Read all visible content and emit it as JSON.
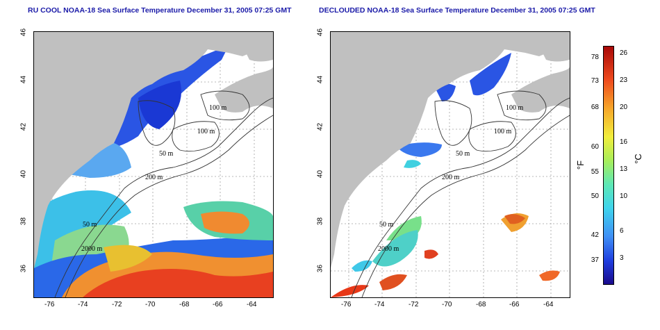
{
  "titles": {
    "left": "RU COOL NOAA-18 Sea Surface Temperature December 31, 2005 07:25 GMT",
    "right": "DECLOUDED NOAA-18 Sea Surface Temperature December 31, 2005 07:25 GMT"
  },
  "axes": {
    "x_ticks": [
      "-76",
      "-74",
      "-72",
      "-70",
      "-68",
      "-66",
      "-64"
    ],
    "y_ticks": [
      "46",
      "44",
      "42",
      "40",
      "38",
      "36"
    ]
  },
  "contour_labels": [
    "100 m",
    "100 m",
    "50 m",
    "200 m",
    "50 m",
    "2000 m"
  ],
  "colorbar": {
    "unit_f": "°F",
    "unit_c": "°C",
    "f_ticks": [
      "78",
      "73",
      "68",
      "60",
      "55",
      "50",
      "42",
      "37"
    ],
    "c_ticks": [
      "26",
      "23",
      "20",
      "16",
      "13",
      "10",
      "6",
      "3"
    ]
  },
  "colors": {
    "land": "#c0c0c0",
    "contour": "#333333",
    "grid": "#a0a0a0",
    "cold": "#2050e0",
    "cool": "#40c8f0",
    "mild": "#70e0a0",
    "warm": "#f0a030",
    "hot": "#e03a1a"
  }
}
